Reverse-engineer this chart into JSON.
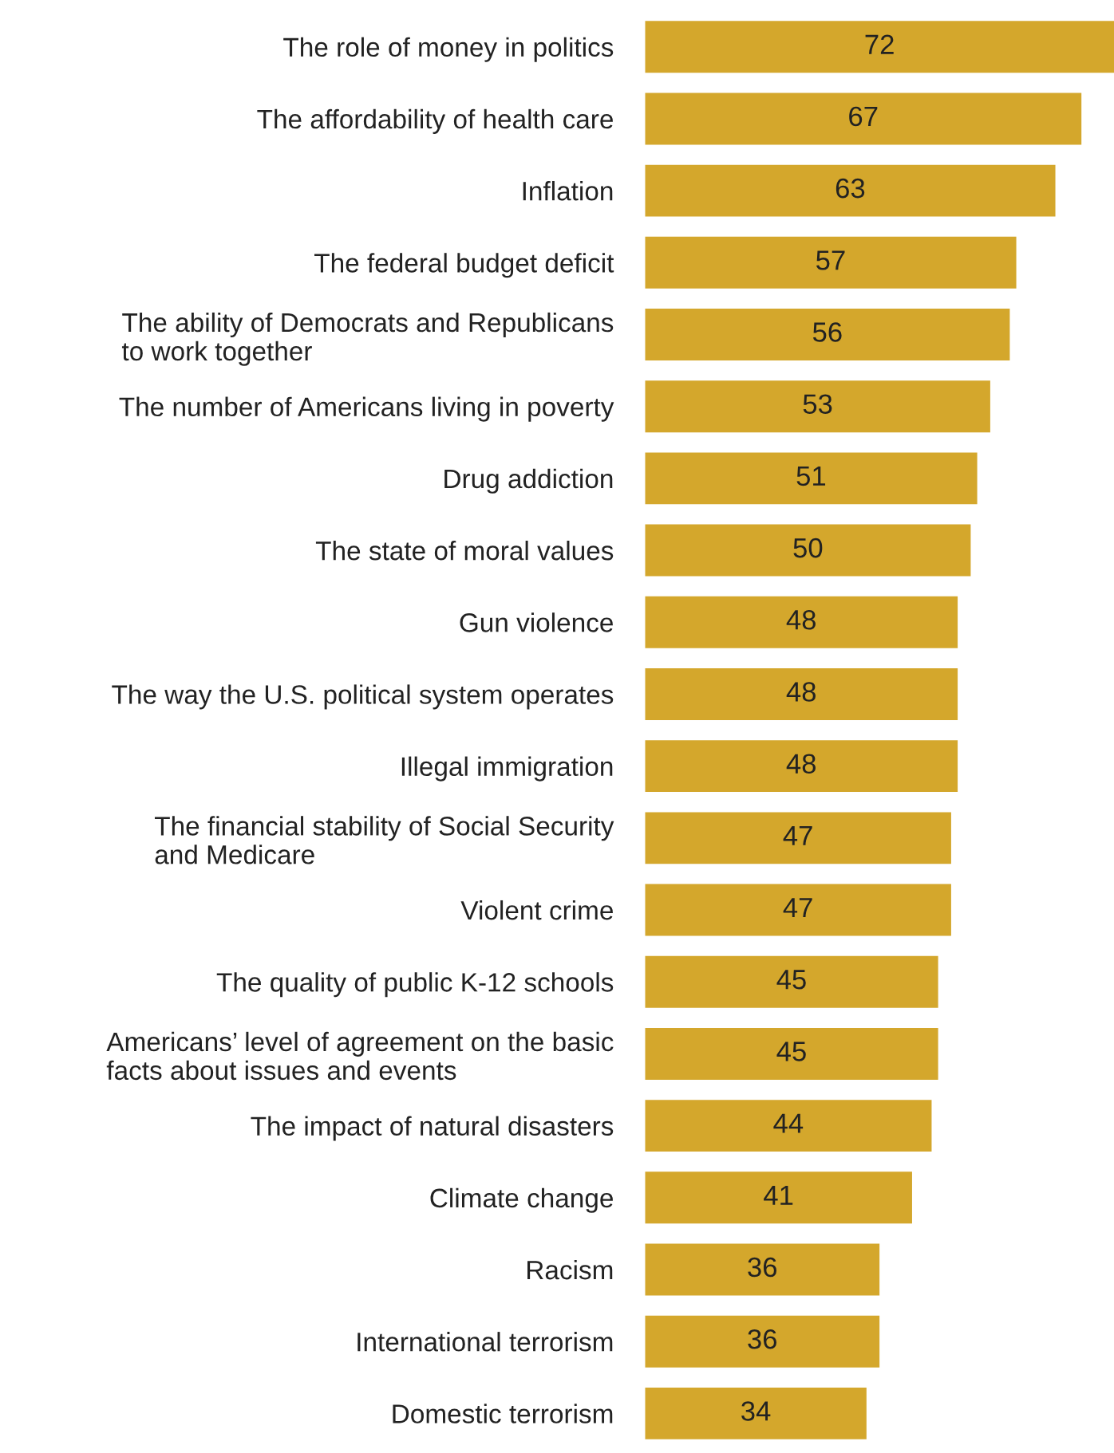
{
  "chart_data": {
    "type": "bar",
    "orientation": "horizontal",
    "data_labels": true,
    "grid": false,
    "legend": false,
    "tick_labels": "y",
    "color": "#d4a72c",
    "categories": [
      "The role of money in politics",
      "The affordability of health care",
      "Inflation",
      "The federal budget deficit",
      "The ability of Democrats and Republicans\nto work together",
      "The number of Americans living in poverty",
      "Drug addiction",
      "The state of moral values",
      "Gun violence",
      "The way the U.S. political system operates",
      "Illegal immigration",
      "The financial stability of Social Security\nand Medicare",
      "Violent crime",
      "The quality of public K-12 schools",
      "Americans’ level of agreement on the basic\nfacts about issues and events",
      "The impact of natural disasters",
      "Climate change",
      "Racism",
      "International terrorism",
      "Domestic terrorism"
    ],
    "values": [
      72,
      67,
      63,
      57,
      56,
      53,
      51,
      50,
      48,
      48,
      48,
      47,
      47,
      45,
      45,
      44,
      41,
      36,
      36,
      34
    ]
  }
}
